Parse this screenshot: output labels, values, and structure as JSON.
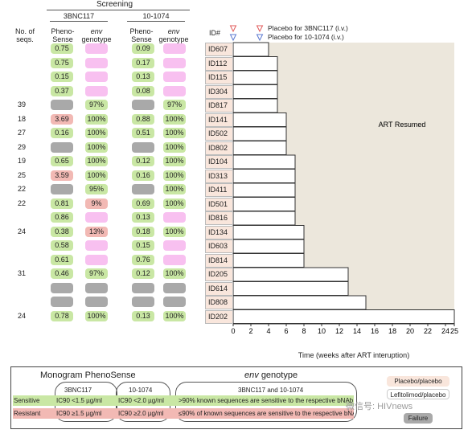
{
  "screening": {
    "title": "Screening",
    "col_seqs_label": "No. of seqs.",
    "groups": [
      "3BNC117",
      "10-1074"
    ],
    "sub_pheno": "Pheno-Sense",
    "sub_env_italic": "env",
    "sub_env_rest": "genotype"
  },
  "rows": [
    {
      "seq": "",
      "a_pheno": "0.75",
      "a_pc": "green",
      "a_env": "",
      "a_ec": "pink",
      "b_pheno": "0.09",
      "b_pc": "green",
      "b_env": "",
      "b_ec": "pink"
    },
    {
      "seq": "",
      "a_pheno": "0.75",
      "a_pc": "green",
      "a_env": "",
      "a_ec": "pink",
      "b_pheno": "0.17",
      "b_pc": "green",
      "b_env": "",
      "b_ec": "pink"
    },
    {
      "seq": "",
      "a_pheno": "0.15",
      "a_pc": "green",
      "a_env": "",
      "a_ec": "pink",
      "b_pheno": "0.13",
      "b_pc": "green",
      "b_env": "",
      "b_ec": "pink"
    },
    {
      "seq": "",
      "a_pheno": "0.37",
      "a_pc": "green",
      "a_env": "",
      "a_ec": "pink",
      "b_pheno": "0.08",
      "b_pc": "green",
      "b_env": "",
      "b_ec": "pink"
    },
    {
      "seq": "39",
      "a_pheno": "",
      "a_pc": "gray",
      "a_env": "97%",
      "a_ec": "green",
      "b_pheno": "",
      "b_pc": "gray",
      "b_env": "97%",
      "b_ec": "green"
    },
    {
      "seq": "18",
      "a_pheno": "3.69",
      "a_pc": "red",
      "a_env": "100%",
      "a_ec": "green",
      "b_pheno": "0.88",
      "b_pc": "green",
      "b_env": "100%",
      "b_ec": "green"
    },
    {
      "seq": "27",
      "a_pheno": "0.16",
      "a_pc": "green",
      "a_env": "100%",
      "a_ec": "green",
      "b_pheno": "0.51",
      "b_pc": "green",
      "b_env": "100%",
      "b_ec": "green"
    },
    {
      "seq": "29",
      "a_pheno": "",
      "a_pc": "gray",
      "a_env": "100%",
      "a_ec": "green",
      "b_pheno": "",
      "b_pc": "gray",
      "b_env": "100%",
      "b_ec": "green"
    },
    {
      "seq": "19",
      "a_pheno": "0.65",
      "a_pc": "green",
      "a_env": "100%",
      "a_ec": "green",
      "b_pheno": "0.12",
      "b_pc": "green",
      "b_env": "100%",
      "b_ec": "green"
    },
    {
      "seq": "25",
      "a_pheno": "3.59",
      "a_pc": "red",
      "a_env": "100%",
      "a_ec": "green",
      "b_pheno": "0.16",
      "b_pc": "green",
      "b_env": "100%",
      "b_ec": "green"
    },
    {
      "seq": "22",
      "a_pheno": "",
      "a_pc": "gray",
      "a_env": "95%",
      "a_ec": "green",
      "b_pheno": "",
      "b_pc": "gray",
      "b_env": "100%",
      "b_ec": "green"
    },
    {
      "seq": "22",
      "a_pheno": "0.81",
      "a_pc": "green",
      "a_env": "9%",
      "a_ec": "red",
      "b_pheno": "0.69",
      "b_pc": "green",
      "b_env": "100%",
      "b_ec": "green"
    },
    {
      "seq": "",
      "a_pheno": "0.86",
      "a_pc": "green",
      "a_env": "",
      "a_ec": "pink",
      "b_pheno": "0.13",
      "b_pc": "green",
      "b_env": "",
      "b_ec": "pink"
    },
    {
      "seq": "24",
      "a_pheno": "0.38",
      "a_pc": "green",
      "a_env": "13%",
      "a_ec": "red",
      "b_pheno": "0.18",
      "b_pc": "green",
      "b_env": "100%",
      "b_ec": "green"
    },
    {
      "seq": "",
      "a_pheno": "0.58",
      "a_pc": "green",
      "a_env": "",
      "a_ec": "pink",
      "b_pheno": "0.15",
      "b_pc": "green",
      "b_env": "",
      "b_ec": "pink"
    },
    {
      "seq": "",
      "a_pheno": "0.61",
      "a_pc": "green",
      "a_env": "",
      "a_ec": "pink",
      "b_pheno": "0.76",
      "b_pc": "green",
      "b_env": "",
      "b_ec": "pink"
    },
    {
      "seq": "31",
      "a_pheno": "0.46",
      "a_pc": "green",
      "a_env": "97%",
      "a_ec": "green",
      "b_pheno": "0.12",
      "b_pc": "green",
      "b_env": "100%",
      "b_ec": "green"
    },
    {
      "seq": "",
      "a_pheno": "",
      "a_pc": "gray",
      "a_env": "",
      "a_ec": "gray",
      "b_pheno": "",
      "b_pc": "gray",
      "b_env": "",
      "b_ec": "gray"
    },
    {
      "seq": "",
      "a_pheno": "",
      "a_pc": "gray",
      "a_env": "",
      "a_ec": "gray",
      "b_pheno": "",
      "b_pc": "gray",
      "b_env": "",
      "b_ec": "gray"
    },
    {
      "seq": "24",
      "a_pheno": "0.78",
      "a_pc": "green",
      "a_env": "100%",
      "a_ec": "green",
      "b_pheno": "0.13",
      "b_pc": "green",
      "b_env": "100%",
      "b_ec": "green"
    }
  ],
  "chart_data": {
    "type": "bar",
    "orientation": "horizontal",
    "categories": [
      "ID607",
      "ID112",
      "ID115",
      "ID304",
      "ID817",
      "ID141",
      "ID502",
      "ID802",
      "ID104",
      "ID313",
      "ID411",
      "ID501",
      "ID816",
      "ID134",
      "ID603",
      "ID814",
      "ID205",
      "ID614",
      "ID808",
      "ID202"
    ],
    "values": [
      4,
      5,
      5,
      5,
      5,
      6,
      6,
      6,
      7,
      7,
      7,
      7,
      7,
      8,
      8,
      8,
      13,
      13,
      15,
      25
    ],
    "xlabel": "Time (weeks after ART interuption)",
    "xlim": [
      0,
      25
    ],
    "xticks": [
      0,
      2,
      4,
      6,
      8,
      10,
      12,
      14,
      16,
      18,
      20,
      22,
      24,
      25
    ],
    "id_header": "ID#",
    "region_label": "ART Resumed",
    "region_color": "#ece7dc",
    "markers": [
      {
        "label": "Placebo for 3BNC117 (i.v.)",
        "week": 0,
        "color": "#e05a5a"
      },
      {
        "label": "Placebo for 3BNC117 (i.v.)",
        "week": 3,
        "color": "#e05a5a"
      },
      {
        "label": "Placebo for 10-1074 (i.v.)",
        "week": 0,
        "color": "#5a78d0"
      },
      {
        "label": "Placebo for 10-1074 (i.v.)",
        "week": 3,
        "color": "#5a78d0"
      }
    ],
    "marker_labels": [
      "Placebo for 3BNC117 (i.v.)",
      "Placebo for 10-1074 (i.v.)"
    ]
  },
  "legend": {
    "pheno_title": "Monogram PhenoSense",
    "env_title_italic": "env",
    "env_title_rest": "genotype",
    "col_a": "3BNC117",
    "col_b": "10-1074",
    "col_env": "3BNC117 and 10-1074",
    "sensitive_label": "Sensitive",
    "resistant_label": "Resistant",
    "sens_a": "IC90 <1.5 µg/ml",
    "sens_b": "IC90 <2.0 µg/ml",
    "res_a": "IC90 ≥1.5 µg/ml",
    "res_b": "IC90 ≥2.0 µg/ml",
    "sens_env": ">90% known sequences are sensitive to the respective bNAb",
    "res_env": "≤90% of known sequences are sensitive to the respective bNAb",
    "key_placebo": "Placebo/placebo",
    "key_lefito": "Lefitolimod/placebo",
    "key_failure": "Failure"
  },
  "watermark": "微信号: HIVnews",
  "colors": {
    "green": "#c9e7a4",
    "red": "#f2b9b4",
    "pink": "#f8c0f0",
    "gray": "#a9a9a9",
    "id_bg": "#f9e6dc"
  }
}
